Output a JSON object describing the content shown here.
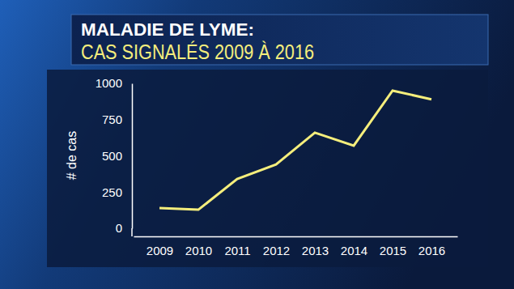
{
  "chart_data": {
    "type": "line",
    "title": "MALADIE DE LYME:",
    "subtitle": "CAS SIGNALÉS 2009 À 2016",
    "ylabel": "# de cas",
    "categories": [
      "2009",
      "2010",
      "2011",
      "2012",
      "2013",
      "2014",
      "2015",
      "2016"
    ],
    "values": [
      140,
      128,
      340,
      440,
      660,
      570,
      950,
      890
    ],
    "color": "#f5ee7c",
    "ylim": [
      0,
      1000
    ],
    "yticks": [
      0,
      250,
      500,
      750,
      1000
    ],
    "grid": false
  }
}
